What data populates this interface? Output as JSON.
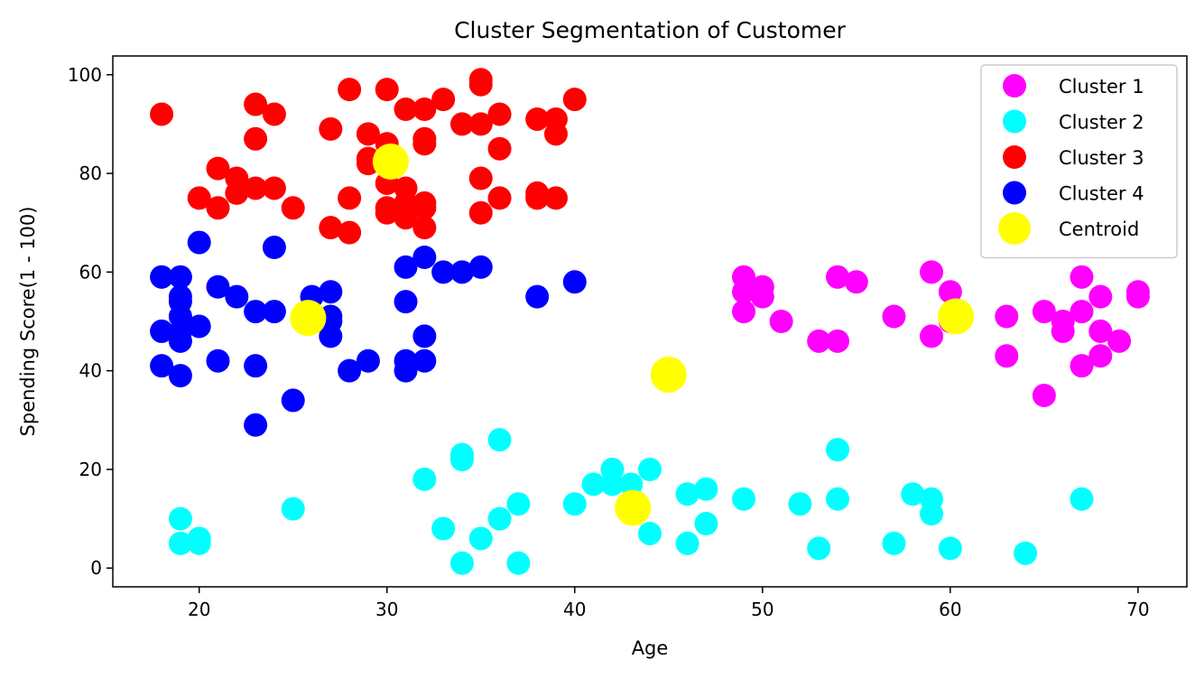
{
  "chart_data": {
    "type": "scatter",
    "title": "Cluster Segmentation of Customer",
    "xlabel": "Age",
    "ylabel": "Spending Score(1 - 100)",
    "xlim": [
      15.4,
      72.6
    ],
    "ylim": [
      -3.8,
      103.8
    ],
    "xticks": [
      20,
      30,
      40,
      50,
      60,
      70
    ],
    "yticks": [
      0,
      20,
      40,
      60,
      80,
      100
    ],
    "grid": false,
    "legend_position": "top-right",
    "series": [
      {
        "name": "Cluster 1",
        "color": "#ff00ff",
        "points": [
          [
            49,
            59
          ],
          [
            49,
            56
          ],
          [
            49,
            52
          ],
          [
            50,
            57
          ],
          [
            50,
            55
          ],
          [
            51,
            50
          ],
          [
            53,
            46
          ],
          [
            54,
            46
          ],
          [
            54,
            59
          ],
          [
            55,
            58
          ],
          [
            57,
            51
          ],
          [
            59,
            60
          ],
          [
            59,
            47
          ],
          [
            60,
            56
          ],
          [
            60,
            50
          ],
          [
            63,
            51
          ],
          [
            63,
            43
          ],
          [
            65,
            52
          ],
          [
            65,
            35
          ],
          [
            66,
            50
          ],
          [
            66,
            48
          ],
          [
            67,
            59
          ],
          [
            67,
            52
          ],
          [
            67,
            41
          ],
          [
            68,
            55
          ],
          [
            68,
            48
          ],
          [
            68,
            43
          ],
          [
            69,
            46
          ],
          [
            70,
            56
          ],
          [
            70,
            55
          ]
        ]
      },
      {
        "name": "Cluster 2",
        "color": "#00ffff",
        "points": [
          [
            19,
            10
          ],
          [
            19,
            5
          ],
          [
            20,
            6
          ],
          [
            20,
            5
          ],
          [
            25,
            12
          ],
          [
            32,
            18
          ],
          [
            33,
            8
          ],
          [
            34,
            23
          ],
          [
            34,
            22
          ],
          [
            34,
            1
          ],
          [
            35,
            6
          ],
          [
            36,
            26
          ],
          [
            36,
            10
          ],
          [
            37,
            13
          ],
          [
            37,
            1
          ],
          [
            40,
            13
          ],
          [
            41,
            17
          ],
          [
            42,
            20
          ],
          [
            42,
            17
          ],
          [
            43,
            17
          ],
          [
            44,
            20
          ],
          [
            44,
            7
          ],
          [
            46,
            15
          ],
          [
            46,
            5
          ],
          [
            47,
            16
          ],
          [
            47,
            9
          ],
          [
            49,
            14
          ],
          [
            52,
            13
          ],
          [
            53,
            4
          ],
          [
            54,
            24
          ],
          [
            54,
            14
          ],
          [
            57,
            5
          ],
          [
            58,
            15
          ],
          [
            59,
            14
          ],
          [
            59,
            11
          ],
          [
            60,
            4
          ],
          [
            64,
            3
          ],
          [
            67,
            14
          ]
        ]
      },
      {
        "name": "Cluster 3",
        "color": "#ff0000",
        "points": [
          [
            18,
            92
          ],
          [
            20,
            75
          ],
          [
            21,
            81
          ],
          [
            21,
            73
          ],
          [
            22,
            79
          ],
          [
            22,
            76
          ],
          [
            23,
            94
          ],
          [
            23,
            87
          ],
          [
            23,
            77
          ],
          [
            24,
            92
          ],
          [
            24,
            77
          ],
          [
            25,
            73
          ],
          [
            27,
            89
          ],
          [
            27,
            69
          ],
          [
            28,
            97
          ],
          [
            28,
            75
          ],
          [
            28,
            68
          ],
          [
            29,
            88
          ],
          [
            29,
            83
          ],
          [
            29,
            82
          ],
          [
            30,
            97
          ],
          [
            30,
            86
          ],
          [
            30,
            78
          ],
          [
            30,
            73
          ],
          [
            30,
            72
          ],
          [
            31,
            93
          ],
          [
            31,
            77
          ],
          [
            31,
            74
          ],
          [
            31,
            71
          ],
          [
            32,
            93
          ],
          [
            32,
            87
          ],
          [
            32,
            86
          ],
          [
            32,
            74
          ],
          [
            32,
            73
          ],
          [
            32,
            69
          ],
          [
            33,
            95
          ],
          [
            34,
            90
          ],
          [
            35,
            99
          ],
          [
            35,
            98
          ],
          [
            35,
            90
          ],
          [
            35,
            79
          ],
          [
            35,
            72
          ],
          [
            36,
            92
          ],
          [
            36,
            85
          ],
          [
            36,
            75
          ],
          [
            38,
            91
          ],
          [
            38,
            76
          ],
          [
            38,
            75
          ],
          [
            39,
            91
          ],
          [
            39,
            88
          ],
          [
            39,
            75
          ],
          [
            40,
            95
          ]
        ]
      },
      {
        "name": "Cluster 4",
        "color": "#0000ff",
        "points": [
          [
            18,
            59
          ],
          [
            18,
            48
          ],
          [
            18,
            41
          ],
          [
            19,
            59
          ],
          [
            19,
            55
          ],
          [
            19,
            54
          ],
          [
            19,
            51
          ],
          [
            19,
            48
          ],
          [
            19,
            46
          ],
          [
            19,
            39
          ],
          [
            20,
            66
          ],
          [
            20,
            49
          ],
          [
            21,
            57
          ],
          [
            21,
            42
          ],
          [
            22,
            55
          ],
          [
            23,
            52
          ],
          [
            23,
            41
          ],
          [
            23,
            29
          ],
          [
            24,
            65
          ],
          [
            24,
            52
          ],
          [
            25,
            34
          ],
          [
            26,
            55
          ],
          [
            27,
            56
          ],
          [
            27,
            51
          ],
          [
            27,
            50
          ],
          [
            27,
            47
          ],
          [
            28,
            40
          ],
          [
            29,
            42
          ],
          [
            31,
            61
          ],
          [
            31,
            54
          ],
          [
            31,
            42
          ],
          [
            31,
            40
          ],
          [
            32,
            63
          ],
          [
            32,
            47
          ],
          [
            32,
            42
          ],
          [
            33,
            60
          ],
          [
            34,
            60
          ],
          [
            35,
            61
          ],
          [
            38,
            55
          ],
          [
            40,
            58
          ]
        ]
      },
      {
        "name": "Centroid",
        "color": "#ffff00",
        "marker": "large",
        "points": [
          [
            30.2,
            82.4
          ],
          [
            60.3,
            51.0
          ],
          [
            25.8,
            50.7
          ],
          [
            45.0,
            39.2
          ],
          [
            43.1,
            12.2
          ]
        ]
      }
    ]
  }
}
